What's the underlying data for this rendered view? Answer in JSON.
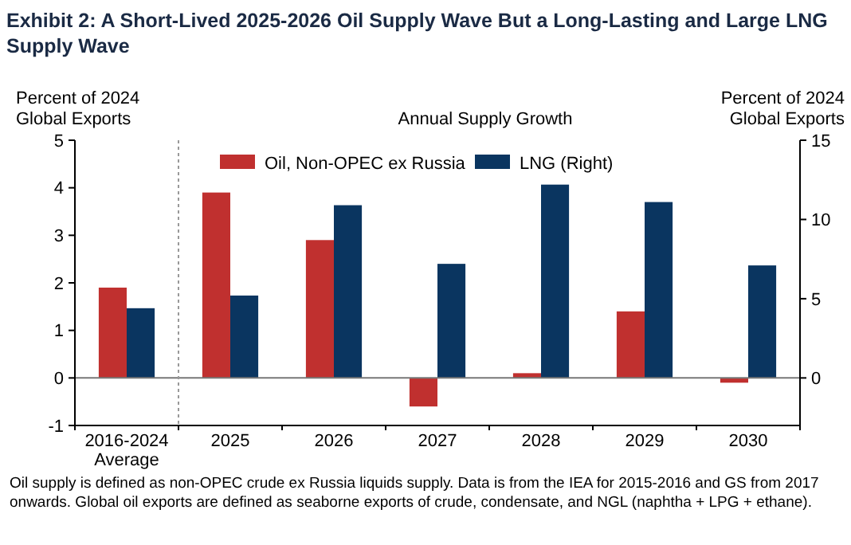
{
  "chart_data": {
    "type": "bar",
    "title": "Exhibit 2: A Short-Lived 2025-2026 Oil Supply Wave But a Long-Lasting and Large LNG Supply Wave",
    "subtitle": "Annual Supply Growth",
    "ylabel": "Percent of 2024 Global Exports",
    "y2label": "Percent of 2024 Global Exports",
    "categories": [
      "2016-2024 Average",
      "2025",
      "2026",
      "2027",
      "2028",
      "2029",
      "2030"
    ],
    "series": [
      {
        "name": "Oil, Non-OPEC ex Russia",
        "color": "#c0302f",
        "values": [
          1.9,
          3.9,
          2.9,
          -0.6,
          0.1,
          1.4,
          -0.1
        ]
      },
      {
        "name": "LNG (Right)",
        "color": "#0a3560",
        "axis": "y2",
        "values": [
          4.4,
          5.2,
          10.9,
          7.2,
          12.2,
          11.1,
          7.1
        ]
      }
    ],
    "ylim": [
      -1,
      5
    ],
    "yticks": [
      -1,
      0,
      1,
      2,
      3,
      4,
      5
    ],
    "y2lim": [
      -3,
      15
    ],
    "y2ticks": [
      0,
      5,
      10,
      15
    ],
    "ref_lines": [
      {
        "axis": "y",
        "value": 0,
        "color": "#777777"
      }
    ],
    "legend": "top",
    "grid": false,
    "annotations": [
      "Oil supply is defined as non-OPEC crude ex Russia liquids supply. Data is from the IEA for 2015-2016 and GS from 2017 onwards. Global oil exports are defined as seaborne exports of crude, condensate, and NGL (naphtha + LPG + ethane)."
    ]
  }
}
